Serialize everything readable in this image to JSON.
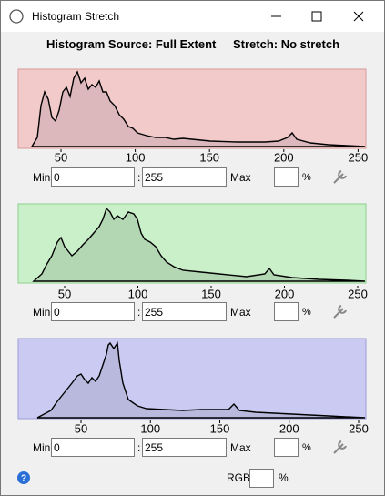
{
  "window": {
    "title": "Histogram Stretch"
  },
  "header": {
    "source": "Histogram Source: Full Extent",
    "stretch": "Stretch: No stretch"
  },
  "panels": [
    {
      "ticks": [
        50,
        100,
        150,
        200,
        250
      ],
      "min_label": "Min",
      "min": 0,
      "max": 255,
      "max_label": "Max",
      "percent": "%"
    },
    {
      "ticks": [
        50,
        100,
        150,
        200,
        250
      ],
      "min_label": "Min",
      "min": 0,
      "max": 255,
      "max_label": "Max",
      "percent": "%"
    },
    {
      "ticks": [
        50,
        100,
        150,
        200,
        250
      ],
      "min_label": "Min",
      "min": 0,
      "max": 255,
      "max_label": "Max",
      "percent": "%"
    }
  ],
  "footer": {
    "rgb": "RGB",
    "percent": "%"
  }
}
